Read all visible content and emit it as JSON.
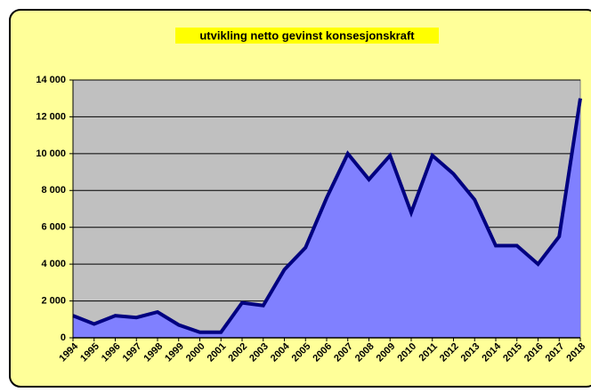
{
  "chart_data": {
    "type": "area",
    "title": "utvikling netto gevinst konsesjonskraft",
    "categories": [
      "1994",
      "1995",
      "1996",
      "1997",
      "1998",
      "1999",
      "2000",
      "2001",
      "2002",
      "2003",
      "2004",
      "2005",
      "2006",
      "2007",
      "2008",
      "2009",
      "2010",
      "2011",
      "2012",
      "2013",
      "2014",
      "2015",
      "2016",
      "2017",
      "2018"
    ],
    "series": [
      {
        "color": "#8080ff",
        "values": [
          1200,
          750,
          1200,
          1100,
          1400,
          700,
          300,
          300,
          1900,
          1750,
          3700,
          4900,
          7600,
          10000,
          8600,
          9900,
          6800,
          9900,
          8900,
          7500,
          5000,
          5000,
          4000,
          5500,
          13000
        ]
      }
    ],
    "ylim": [
      0,
      14000
    ],
    "yticks": [
      0,
      {
        "value": 2000,
        "label": "2 000"
      },
      {
        "value": 4000,
        "label": "4 000"
      },
      {
        "value": 6000,
        "label": "6 000"
      },
      {
        "value": 8000,
        "label": "8 000"
      },
      {
        "value": 10000,
        "label": "10 000"
      },
      {
        "value": 12000,
        "label": "12 000"
      },
      {
        "value": 14000,
        "label": "14 000"
      }
    ],
    "grid": true
  }
}
